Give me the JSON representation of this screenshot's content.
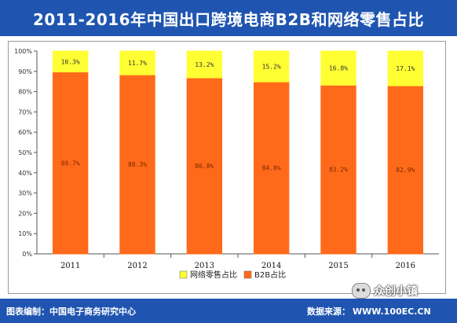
{
  "title": "2011-2016年中国出口跨境电商B2B和网络零售占比",
  "footer": {
    "source_credit": "图表编制：中国电子商务研究中心",
    "data_source_label": "数据来源：",
    "data_source_url": "WWW.100EC.CN"
  },
  "watermark": "众创小镇",
  "colors": {
    "header": "#1f55b0",
    "retail": "#ffff33",
    "b2b": "#ff6a1a"
  },
  "chart_data": {
    "type": "bar",
    "stacked": true,
    "categories": [
      "2011",
      "2012",
      "2013",
      "2014",
      "2015",
      "2016"
    ],
    "series": [
      {
        "name": "B2B占比",
        "values": [
          89.7,
          88.3,
          86.8,
          84.8,
          83.2,
          82.9
        ],
        "labels": [
          "89.7%",
          "88.3%",
          "86.8%",
          "84.8%",
          "83.2%",
          "82.9%"
        ],
        "color": "#ff6a1a"
      },
      {
        "name": "网络零售占比",
        "values": [
          10.3,
          11.7,
          13.2,
          15.2,
          16.8,
          17.1
        ],
        "labels": [
          "10.3%",
          "11.7%",
          "13.2%",
          "15.2%",
          "16.8%",
          "17.1%"
        ],
        "color": "#ffff33"
      }
    ],
    "legend_order": [
      "网络零售占比",
      "B2B占比"
    ],
    "yticks": [
      "0%",
      "10%",
      "20%",
      "30%",
      "40%",
      "50%",
      "60%",
      "70%",
      "80%",
      "90%",
      "100%"
    ],
    "ylim": [
      0,
      100
    ],
    "legend_position": "bottom",
    "grid": false
  }
}
